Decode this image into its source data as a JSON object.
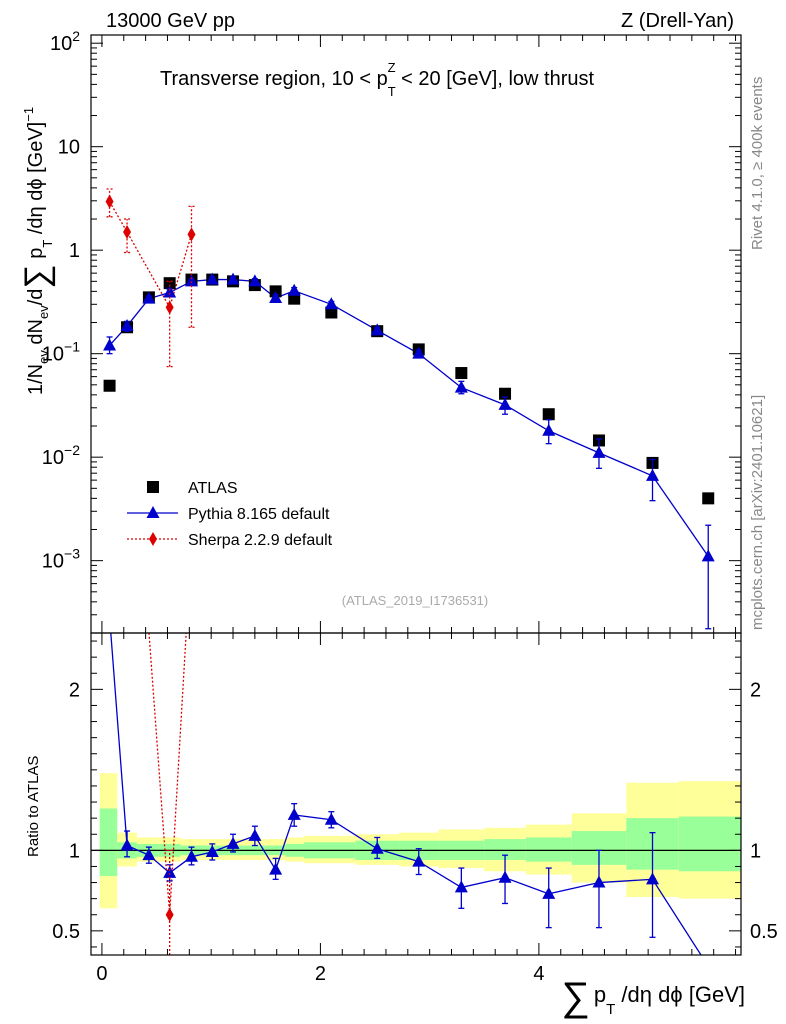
{
  "header": {
    "energy_label": "13000 GeV pp",
    "process_label": "Z (Drell-Yan)"
  },
  "side_labels": {
    "rivet": "Rivet 4.1.0, ≥ 400k events",
    "mcplots": "mcplots.cern.ch [arXiv:2401.10621]"
  },
  "chart_data": [
    {
      "type": "scatter",
      "panel": "main",
      "yscale": "log",
      "title": {
        "pre": "Transverse region, 10 < p",
        "sub": "T",
        "sup": "Z",
        "post": " < 20 [GeV], low thrust"
      },
      "watermark": "(ATLAS_2019_I1736531)",
      "ylabel": "1/N_ev dN_ev/d∑ p_T /dη dϕ [GeV]^-1",
      "xlabel": "∑ p_T /dη dϕ [GeV]",
      "xlim": [
        -0.1,
        5.85
      ],
      "ylim": [
        0.0002,
        120
      ],
      "y_tick_labels": [
        {
          "mant": "10",
          "exp": "2",
          "plain": "",
          "v": 100
        },
        {
          "mant": "",
          "exp": "",
          "plain": "10",
          "v": 10
        },
        {
          "mant": "",
          "exp": "",
          "plain": "1",
          "v": 1
        },
        {
          "mant": "10",
          "exp": "−1",
          "plain": "",
          "v": 0.1
        },
        {
          "mant": "10",
          "exp": "−2",
          "plain": "",
          "v": 0.01
        },
        {
          "mant": "10",
          "exp": "−3",
          "plain": "",
          "v": 0.001
        }
      ],
      "legend": [
        {
          "label": "ATLAS",
          "color": "#000000",
          "marker": "square"
        },
        {
          "label": "Pythia 8.165 default",
          "color": "#0000cc",
          "marker": "triangle"
        },
        {
          "label": "Sherpa 2.2.9 default",
          "color": "#dd0000",
          "marker": "diamond"
        }
      ],
      "series": [
        {
          "name": "ATLAS",
          "color": "#000000",
          "marker": "square",
          "line": "none",
          "x": [
            0.07,
            0.23,
            0.43,
            0.62,
            0.82,
            1.01,
            1.2,
            1.4,
            1.59,
            1.76,
            2.1,
            2.52,
            2.9,
            3.29,
            3.69,
            4.09,
            4.55,
            5.04,
            5.55
          ],
          "y": [
            0.049,
            0.18,
            0.35,
            0.48,
            0.52,
            0.52,
            0.5,
            0.46,
            0.4,
            0.34,
            0.25,
            0.165,
            0.11,
            0.065,
            0.041,
            0.026,
            0.0145,
            0.0088,
            0.004
          ],
          "err_lo": [],
          "err_hi": []
        },
        {
          "name": "Pythia 8.165 default",
          "color": "#0000cc",
          "marker": "triangle",
          "line": "solid",
          "x": [
            0.07,
            0.23,
            0.43,
            0.62,
            0.82,
            1.01,
            1.2,
            1.4,
            1.59,
            1.76,
            2.1,
            2.52,
            2.9,
            3.29,
            3.69,
            4.09,
            4.55,
            5.04,
            5.55
          ],
          "y": [
            0.12,
            0.185,
            0.34,
            0.39,
            0.5,
            0.52,
            0.52,
            0.5,
            0.345,
            0.405,
            0.3,
            0.168,
            0.1,
            0.047,
            0.032,
            0.018,
            0.011,
            0.0066,
            0.0011
          ],
          "err_lo": [
            0.1,
            0.165,
            0.32,
            0.36,
            0.47,
            0.49,
            0.49,
            0.47,
            0.32,
            0.375,
            0.28,
            0.158,
            0.092,
            0.041,
            0.026,
            0.0135,
            0.0078,
            0.0038,
            0.00022
          ],
          "err_hi": [
            0.145,
            0.205,
            0.36,
            0.42,
            0.53,
            0.55,
            0.55,
            0.53,
            0.37,
            0.435,
            0.32,
            0.178,
            0.108,
            0.054,
            0.038,
            0.023,
            0.015,
            0.0095,
            0.0022
          ]
        },
        {
          "name": "Sherpa 2.2.9 default",
          "color": "#dd0000",
          "marker": "diamond",
          "line": "dotted",
          "x": [
            0.07,
            0.23,
            0.62,
            0.82
          ],
          "y": [
            2.95,
            1.5,
            0.28,
            1.42
          ],
          "err_lo": [
            2.1,
            0.95,
            0.075,
            0.18
          ],
          "err_hi": [
            3.9,
            2.0,
            0.5,
            2.65
          ]
        }
      ]
    },
    {
      "type": "line",
      "panel": "ratio",
      "ylabel": "Ratio to ATLAS",
      "xlim": [
        -0.1,
        5.85
      ],
      "ylim": [
        0.35,
        2.35
      ],
      "x_tick_labels": [
        {
          "text": "0",
          "v": 0
        },
        {
          "text": "2",
          "v": 2
        },
        {
          "text": "4",
          "v": 4
        }
      ],
      "y_tick_labels": [
        {
          "text": "2",
          "v": 2
        },
        {
          "text": "1",
          "v": 1
        },
        {
          "text": "0.5",
          "v": 0.5
        }
      ],
      "bands": {
        "bin_edges": [
          -0.02,
          0.14,
          0.32,
          0.52,
          0.72,
          0.92,
          1.1,
          1.3,
          1.5,
          1.68,
          1.85,
          2.32,
          2.72,
          3.08,
          3.5,
          3.88,
          4.3,
          4.8,
          5.28,
          5.85
        ],
        "inner_lo": [
          0.84,
          0.95,
          0.96,
          0.96,
          0.97,
          0.97,
          0.97,
          0.97,
          0.97,
          0.96,
          0.95,
          0.94,
          0.94,
          0.94,
          0.94,
          0.93,
          0.91,
          0.88,
          0.87
        ],
        "inner_hi": [
          1.26,
          1.05,
          1.04,
          1.04,
          1.03,
          1.03,
          1.03,
          1.03,
          1.03,
          1.04,
          1.05,
          1.06,
          1.06,
          1.06,
          1.07,
          1.08,
          1.12,
          1.2,
          1.21
        ],
        "outer_lo": [
          0.64,
          0.9,
          0.93,
          0.93,
          0.94,
          0.94,
          0.94,
          0.94,
          0.94,
          0.93,
          0.92,
          0.91,
          0.9,
          0.89,
          0.87,
          0.85,
          0.8,
          0.71,
          0.7
        ],
        "outer_hi": [
          1.48,
          1.11,
          1.08,
          1.08,
          1.07,
          1.07,
          1.07,
          1.07,
          1.07,
          1.08,
          1.09,
          1.1,
          1.11,
          1.13,
          1.14,
          1.16,
          1.23,
          1.42,
          1.43
        ],
        "inner_color": "#99ff99",
        "outer_color": "#ffff99"
      },
      "series": [
        {
          "name": "Pythia 8.165 default",
          "color": "#0000cc",
          "marker": "triangle",
          "line": "solid",
          "x": [
            0.23,
            0.43,
            0.62,
            0.82,
            1.01,
            1.2,
            1.4,
            1.59,
            1.76,
            2.1,
            2.52,
            2.9,
            3.29,
            3.69,
            4.09,
            4.55,
            5.04
          ],
          "y": [
            1.03,
            0.97,
            0.86,
            0.96,
            0.99,
            1.04,
            1.09,
            0.88,
            1.22,
            1.19,
            1.01,
            0.93,
            0.77,
            0.83,
            0.73,
            0.8,
            0.82
          ],
          "err_lo": [
            0.96,
            0.92,
            0.81,
            0.91,
            0.94,
            0.99,
            1.03,
            0.82,
            1.15,
            1.14,
            0.95,
            0.85,
            0.64,
            0.67,
            0.52,
            0.52,
            0.46
          ],
          "err_hi": [
            1.12,
            1.02,
            0.91,
            1.02,
            1.04,
            1.1,
            1.15,
            0.95,
            1.29,
            1.24,
            1.08,
            1.01,
            0.89,
            0.97,
            0.89,
            1.0,
            1.11
          ],
          "line_x": [
            0.07,
            0.23,
            0.43,
            0.62,
            0.82,
            1.01,
            1.2,
            1.4,
            1.59,
            1.76,
            2.1,
            2.52,
            2.9,
            3.29,
            3.69,
            4.09,
            4.55,
            5.04,
            5.55
          ],
          "line_y": [
            2.45,
            1.03,
            0.97,
            0.86,
            0.96,
            0.99,
            1.04,
            1.09,
            0.88,
            1.22,
            1.19,
            1.01,
            0.93,
            0.77,
            0.83,
            0.73,
            0.8,
            0.82,
            0.28
          ]
        },
        {
          "name": "Sherpa 2.2.9 default",
          "color": "#dd0000",
          "marker": "diamond",
          "line": "dotted",
          "x": [
            0.62
          ],
          "y": [
            0.6
          ],
          "err_lo": [
            0.3
          ],
          "err_hi": [
            1.0
          ],
          "line_x": [
            0.42,
            0.62,
            0.78
          ],
          "line_y": [
            2.45,
            0.6,
            2.45
          ]
        }
      ]
    }
  ]
}
